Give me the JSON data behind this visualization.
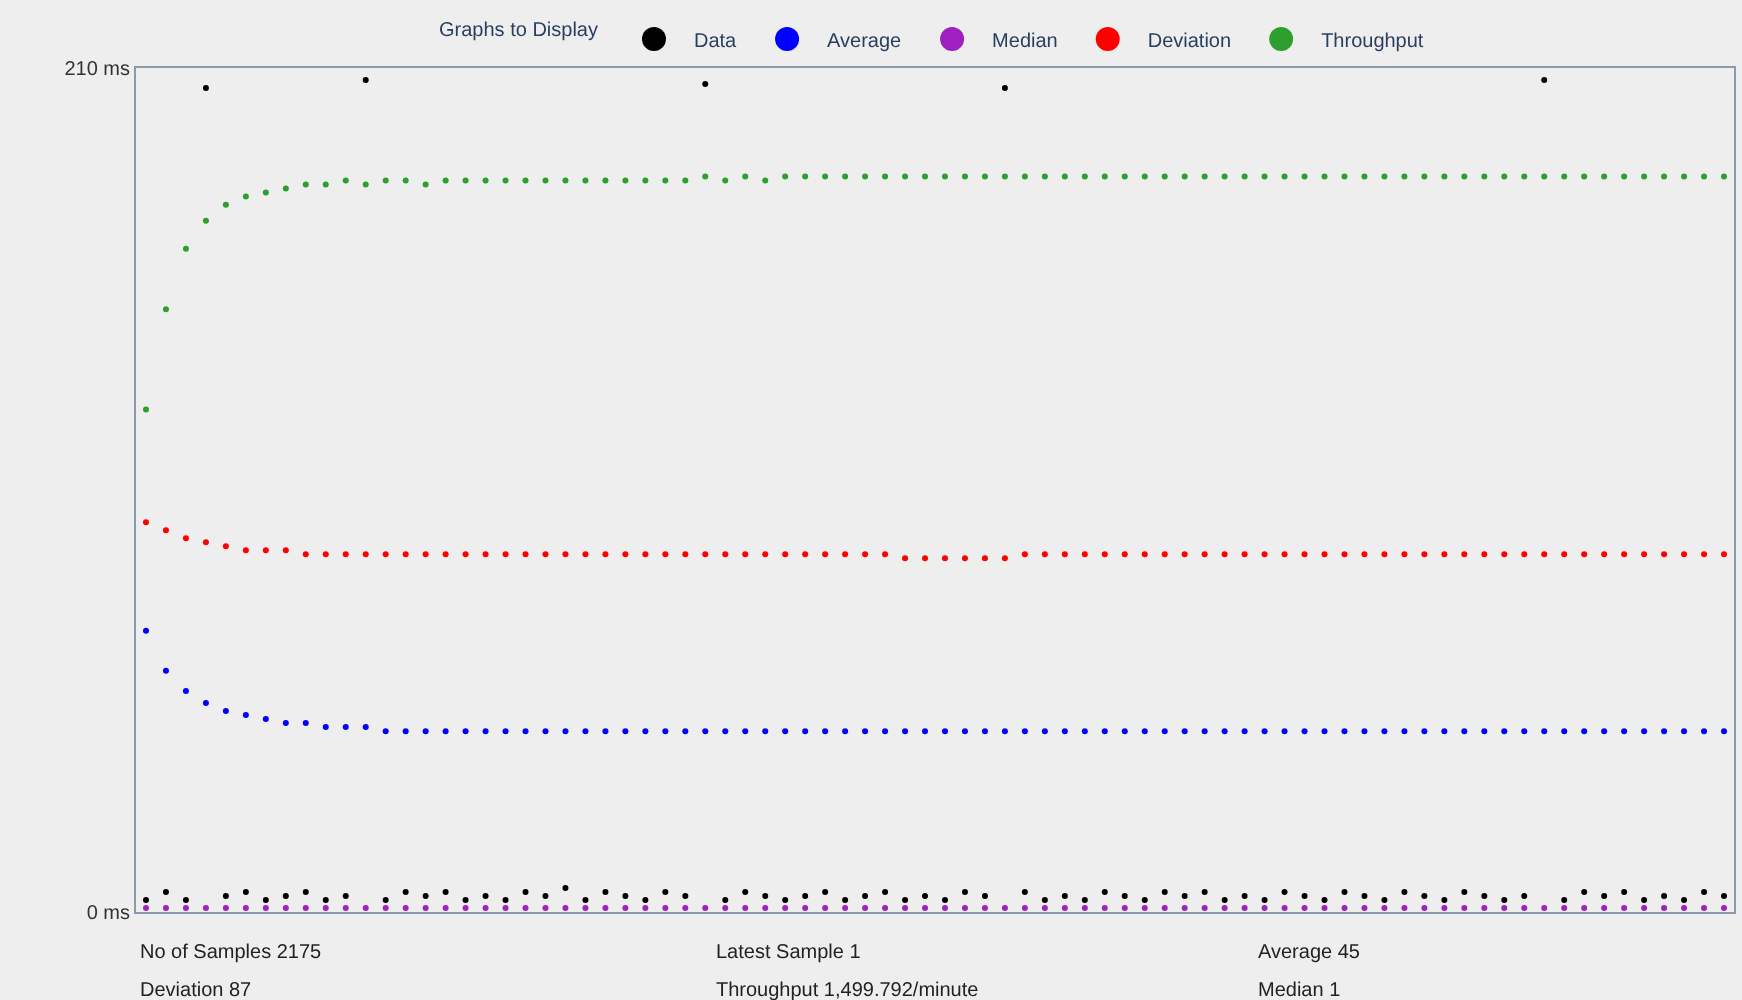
{
  "chart_data": {
    "type": "scatter",
    "legend_title": "Graphs to Display",
    "legend": "top",
    "marker": "circle",
    "categories": [
      null,
      null,
      null,
      null,
      null,
      null,
      null,
      null,
      null,
      null,
      null,
      null,
      null,
      null,
      null,
      null,
      null,
      null,
      null,
      null,
      null,
      null,
      null,
      null,
      null,
      null,
      null,
      null,
      null,
      null,
      null,
      null,
      null,
      null,
      null,
      null,
      null,
      null,
      null,
      null,
      null,
      null,
      null,
      null,
      null,
      null,
      null,
      null,
      null,
      null,
      null,
      null,
      null,
      null,
      null,
      null,
      null,
      null,
      null,
      null,
      null,
      null,
      null,
      null,
      null,
      null,
      null,
      null,
      null,
      null,
      null,
      null,
      null,
      null,
      null,
      null,
      null,
      null,
      null,
      null
    ],
    "ylim": [
      0,
      210
    ],
    "yticks": [
      {
        "value": 0,
        "label": "0 ms"
      },
      {
        "value": 210,
        "label": "210 ms"
      }
    ],
    "series": [
      {
        "name": "Data",
        "color": "#000000",
        "values": [
          3,
          5,
          3,
          205,
          4,
          5,
          3,
          4,
          5,
          3,
          4,
          207,
          3,
          5,
          4,
          5,
          3,
          4,
          3,
          5,
          4,
          6,
          3,
          5,
          4,
          3,
          5,
          4,
          206,
          3,
          5,
          4,
          3,
          4,
          5,
          3,
          4,
          5,
          3,
          4,
          3,
          5,
          4,
          205,
          5,
          3,
          4,
          3,
          5,
          4,
          3,
          5,
          4,
          5,
          3,
          4,
          3,
          5,
          4,
          3,
          5,
          4,
          3,
          5,
          4,
          3,
          5,
          4,
          3,
          4,
          207,
          3,
          5,
          4,
          5,
          3,
          4,
          3,
          5,
          4
        ]
      },
      {
        "name": "Average",
        "color": "#0000ff",
        "values": [
          70,
          60,
          55,
          52,
          50,
          49,
          48,
          47,
          47,
          46,
          46,
          46,
          45,
          45,
          45,
          45,
          45,
          45,
          45,
          45,
          45,
          45,
          45,
          45,
          45,
          45,
          45,
          45,
          45,
          45,
          45,
          45,
          45,
          45,
          45,
          45,
          45,
          45,
          45,
          45,
          45,
          45,
          45,
          45,
          45,
          45,
          45,
          45,
          45,
          45,
          45,
          45,
          45,
          45,
          45,
          45,
          45,
          45,
          45,
          45,
          45,
          45,
          45,
          45,
          45,
          45,
          45,
          45,
          45,
          45,
          45,
          45,
          45,
          45,
          45,
          45,
          45,
          45,
          45,
          45
        ]
      },
      {
        "name": "Median",
        "color": "#a020c0",
        "values": [
          1,
          1,
          1,
          1,
          1,
          1,
          1,
          1,
          1,
          1,
          1,
          1,
          1,
          1,
          1,
          1,
          1,
          1,
          1,
          1,
          1,
          1,
          1,
          1,
          1,
          1,
          1,
          1,
          1,
          1,
          1,
          1,
          1,
          1,
          1,
          1,
          1,
          1,
          1,
          1,
          1,
          1,
          1,
          1,
          1,
          1,
          1,
          1,
          1,
          1,
          1,
          1,
          1,
          1,
          1,
          1,
          1,
          1,
          1,
          1,
          1,
          1,
          1,
          1,
          1,
          1,
          1,
          1,
          1,
          1,
          1,
          1,
          1,
          1,
          1,
          1,
          1,
          1,
          1,
          1
        ]
      },
      {
        "name": "Deviation",
        "color": "#ff0000",
        "values": [
          97,
          95,
          93,
          92,
          91,
          90,
          90,
          90,
          89,
          89,
          89,
          89,
          89,
          89,
          89,
          89,
          89,
          89,
          89,
          89,
          89,
          89,
          89,
          89,
          89,
          89,
          89,
          89,
          89,
          89,
          89,
          89,
          89,
          89,
          89,
          89,
          89,
          89,
          88,
          88,
          88,
          88,
          88,
          88,
          89,
          89,
          89,
          89,
          89,
          89,
          89,
          89,
          89,
          89,
          89,
          89,
          89,
          89,
          89,
          89,
          89,
          89,
          89,
          89,
          89,
          89,
          89,
          89,
          89,
          89,
          89,
          89,
          89,
          89,
          89,
          89,
          89,
          89,
          89,
          89
        ]
      },
      {
        "name": "Throughput",
        "color": "#2e9e2e",
        "values": [
          125,
          150,
          165,
          172,
          176,
          178,
          179,
          180,
          181,
          181,
          182,
          181,
          182,
          182,
          181,
          182,
          182,
          182,
          182,
          182,
          182,
          182,
          182,
          182,
          182,
          182,
          182,
          182,
          183,
          182,
          183,
          182,
          183,
          183,
          183,
          183,
          183,
          183,
          183,
          183,
          183,
          183,
          183,
          183,
          183,
          183,
          183,
          183,
          183,
          183,
          183,
          183,
          183,
          183,
          183,
          183,
          183,
          183,
          183,
          183,
          183,
          183,
          183,
          183,
          183,
          183,
          183,
          183,
          183,
          183,
          183,
          183,
          183,
          183,
          183,
          183,
          183,
          183,
          183,
          183
        ]
      }
    ],
    "annotations": [
      "No of Samples 2175",
      "Latest Sample 1",
      "Average 45",
      "Deviation 87",
      "Throughput 1,499.792/minute",
      "Median 1"
    ]
  }
}
